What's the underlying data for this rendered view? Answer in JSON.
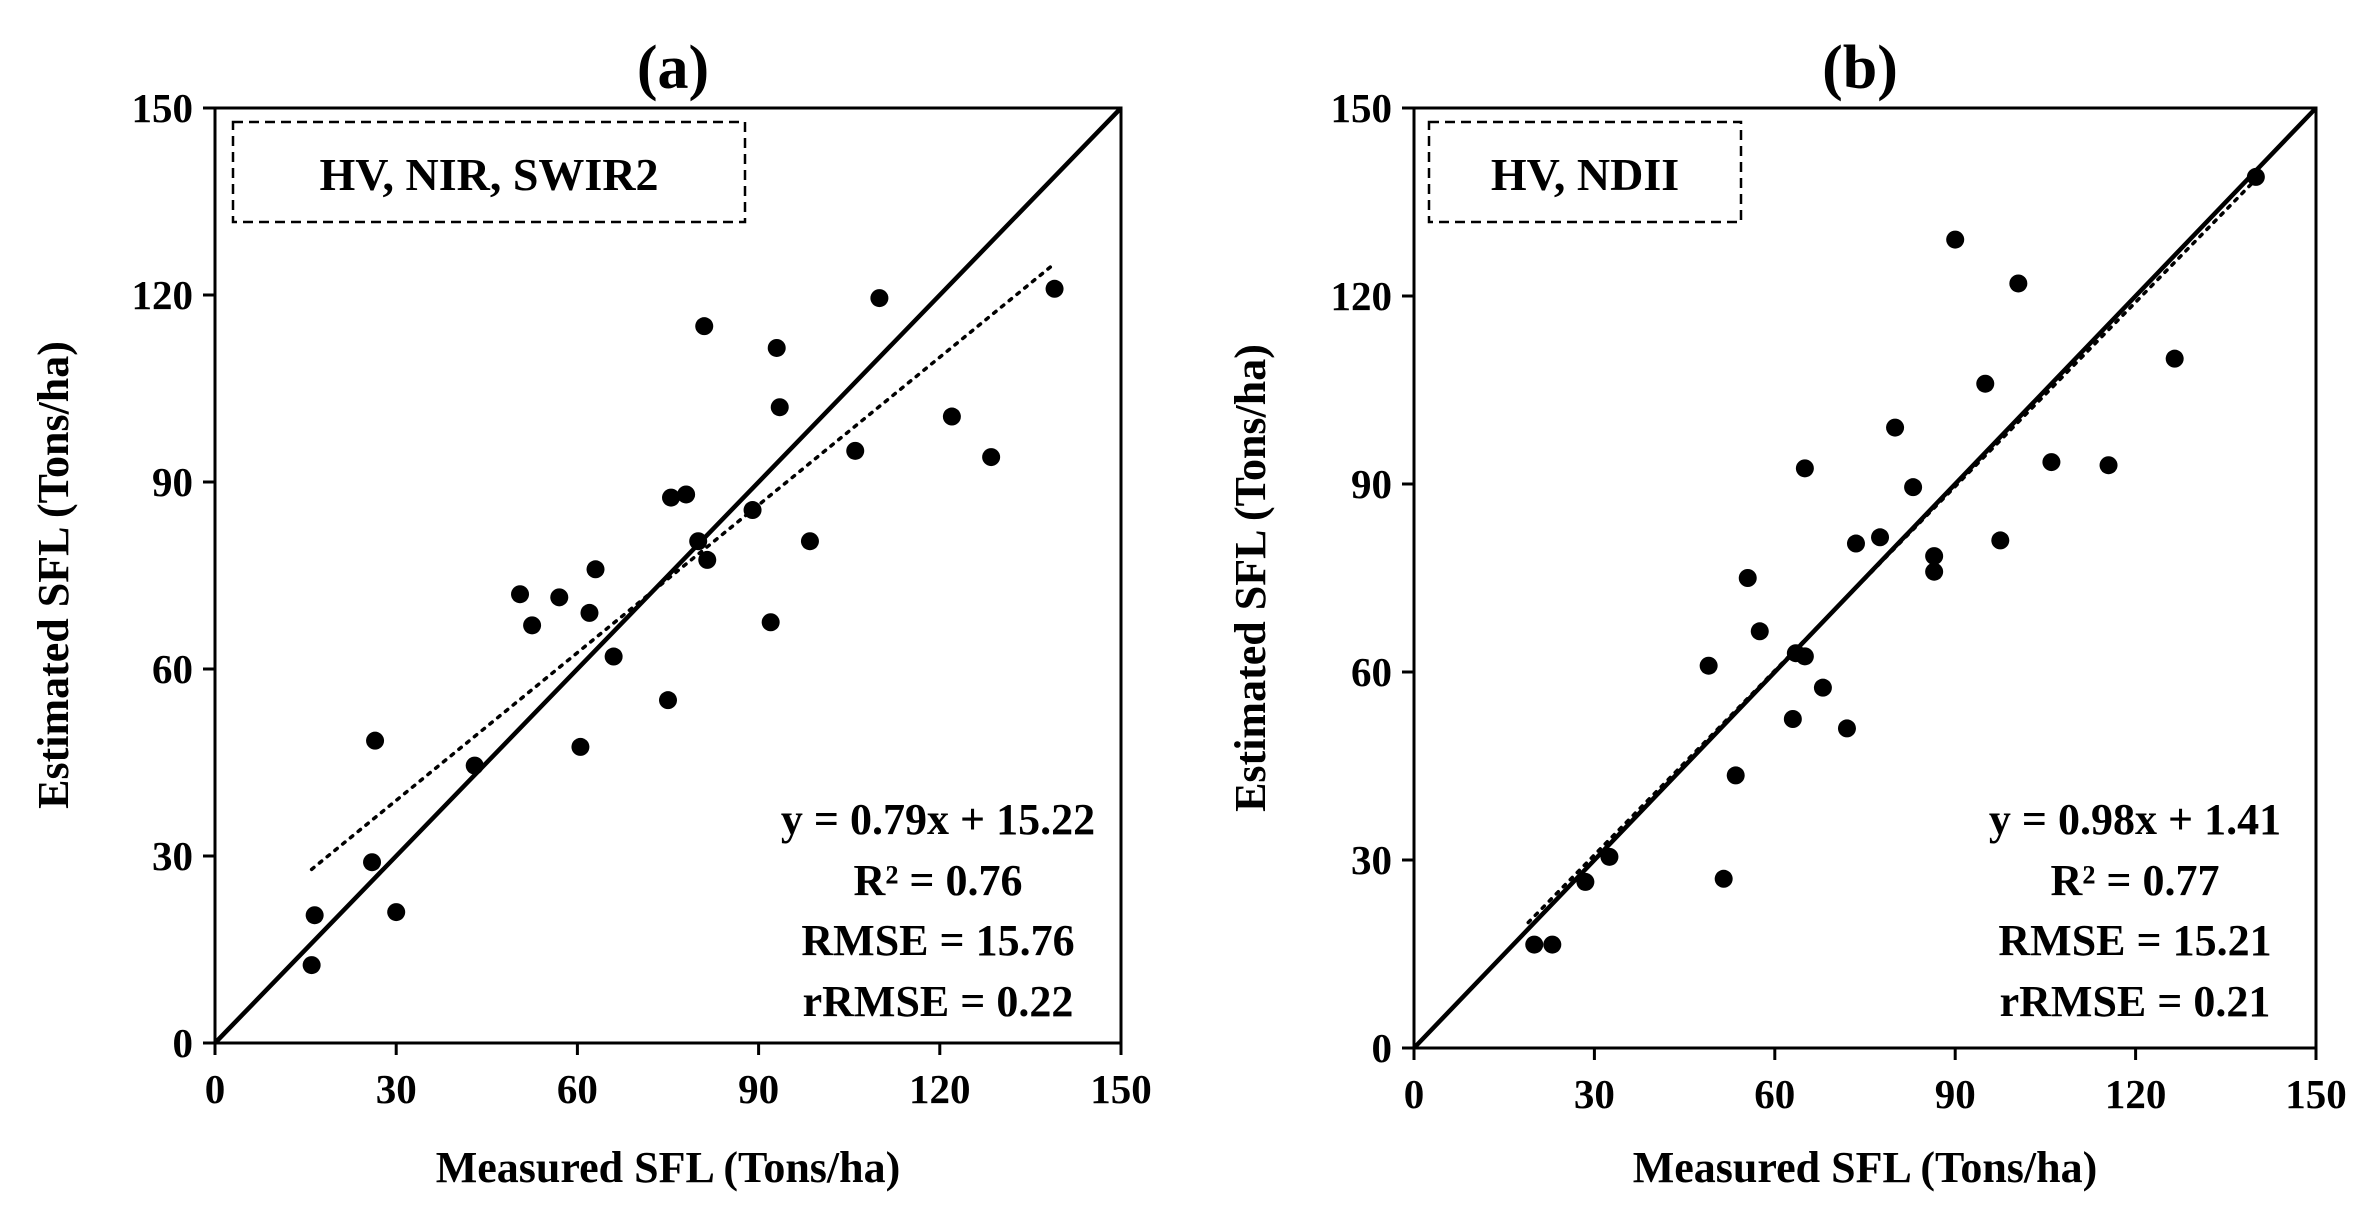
{
  "chart_data": [
    {
      "type": "scatter",
      "panel_label": "(a)",
      "box_label": "HV, NIR, SWIR2",
      "xlabel": "Measured SFL (Tons/ha)",
      "ylabel": "Estimated SFL (Tons/ha)",
      "xlim": [
        0,
        150
      ],
      "ylim": [
        0,
        150
      ],
      "xticks": [
        "0",
        "30",
        "60",
        "90",
        "120",
        "150"
      ],
      "yticks": [
        "0",
        "30",
        "60",
        "90",
        "120",
        "150"
      ],
      "xtick_values": [
        0,
        30,
        60,
        90,
        120,
        150
      ],
      "ytick_values": [
        0,
        30,
        60,
        90,
        120,
        150
      ],
      "one_to_one_line": true,
      "fit": {
        "slope": 0.79,
        "intercept": 15.22,
        "x_range": [
          16,
          139
        ]
      },
      "stats": {
        "equation": "y = 0.79x + 15.22",
        "r2": "R² = 0.76",
        "rmse": "RMSE = 15.76",
        "rrmse": "rRMSE = 0.22"
      },
      "points": [
        [
          16,
          12.5
        ],
        [
          16.5,
          20.5
        ],
        [
          26,
          29
        ],
        [
          26.5,
          48.5
        ],
        [
          30,
          21
        ],
        [
          43,
          44.5
        ],
        [
          50.5,
          72
        ],
        [
          52.5,
          67
        ],
        [
          57,
          71.5
        ],
        [
          60.5,
          47.5
        ],
        [
          62,
          69
        ],
        [
          63,
          76
        ],
        [
          66,
          62
        ],
        [
          75,
          55
        ],
        [
          75.5,
          87.5
        ],
        [
          78,
          88
        ],
        [
          80,
          80.5
        ],
        [
          81,
          115
        ],
        [
          81.5,
          77.5
        ],
        [
          89,
          85.5
        ],
        [
          92,
          67.5
        ],
        [
          93,
          111.5
        ],
        [
          93.5,
          102
        ],
        [
          98.5,
          80.5
        ],
        [
          106,
          95
        ],
        [
          110,
          119.5
        ],
        [
          122,
          100.5
        ],
        [
          128.5,
          94
        ],
        [
          139,
          121
        ]
      ]
    },
    {
      "type": "scatter",
      "panel_label": "(b)",
      "box_label": "HV, NDII",
      "xlabel": "Measured SFL (Tons/ha)",
      "ylabel": "Estimated SFL (Tons/ha)",
      "xlim": [
        0,
        150
      ],
      "ylim": [
        0,
        150
      ],
      "xticks": [
        "0",
        "30",
        "60",
        "90",
        "120",
        "150"
      ],
      "yticks": [
        "0",
        "30",
        "60",
        "90",
        "120",
        "150"
      ],
      "xtick_values": [
        0,
        30,
        60,
        90,
        120,
        150
      ],
      "ytick_values": [
        0,
        30,
        60,
        90,
        120,
        150
      ],
      "one_to_one_line": true,
      "fit": {
        "slope": 0.98,
        "intercept": 1.41,
        "x_range": [
          19,
          140
        ]
      },
      "stats": {
        "equation": "y = 0.98x + 1.41",
        "r2": "R² = 0.77",
        "rmse": "RMSE = 15.21",
        "rrmse": "rRMSE = 0.21"
      },
      "points": [
        [
          20,
          16.5
        ],
        [
          23,
          16.5
        ],
        [
          28.5,
          26.5
        ],
        [
          32.5,
          30.5
        ],
        [
          49,
          61
        ],
        [
          51.5,
          27
        ],
        [
          53.5,
          43.5
        ],
        [
          55.5,
          75
        ],
        [
          57.5,
          66.5
        ],
        [
          63,
          52.5
        ],
        [
          63.5,
          63
        ],
        [
          65,
          62.5
        ],
        [
          65,
          92.5
        ],
        [
          68,
          57.5
        ],
        [
          72,
          51
        ],
        [
          73.5,
          80.5
        ],
        [
          77.5,
          81.5
        ],
        [
          80,
          99
        ],
        [
          83,
          89.5
        ],
        [
          86.5,
          78.5
        ],
        [
          86.5,
          76
        ],
        [
          90,
          129
        ],
        [
          95,
          106
        ],
        [
          97.5,
          81
        ],
        [
          100.5,
          122
        ],
        [
          106,
          93.5
        ],
        [
          115.5,
          93
        ],
        [
          126.5,
          110
        ],
        [
          140,
          139
        ]
      ]
    }
  ]
}
